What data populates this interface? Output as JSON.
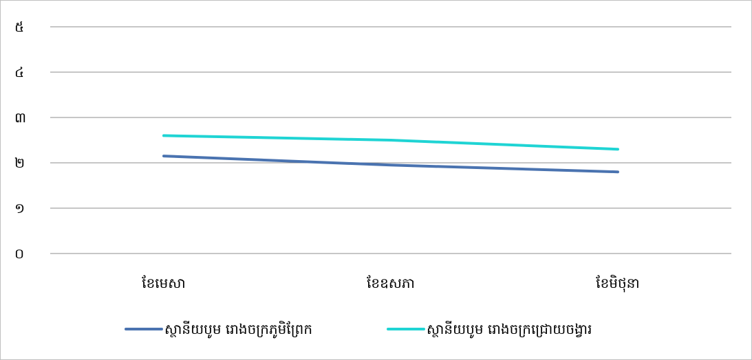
{
  "chart_data": {
    "type": "line",
    "categories": [
      "ខែមេសា",
      "ខែឧសភា",
      "ខែមិថុនា"
    ],
    "y_ticks": [
      "០",
      "១",
      "២",
      "៣",
      "៤",
      "៥"
    ],
    "ylim": [
      0,
      5
    ],
    "grid": true,
    "legend_position": "bottom",
    "series": [
      {
        "name": "ស្ថានីយបូម រោងចក្រភូមិព្រែក",
        "values": [
          2.15,
          1.95,
          1.8
        ],
        "color": "#4a73b0"
      },
      {
        "name": "ស្ថានីយបូម រោងចក្រជ្រោយចង្វារ",
        "values": [
          2.6,
          2.5,
          2.3
        ],
        "color": "#1fd4d4"
      }
    ]
  }
}
